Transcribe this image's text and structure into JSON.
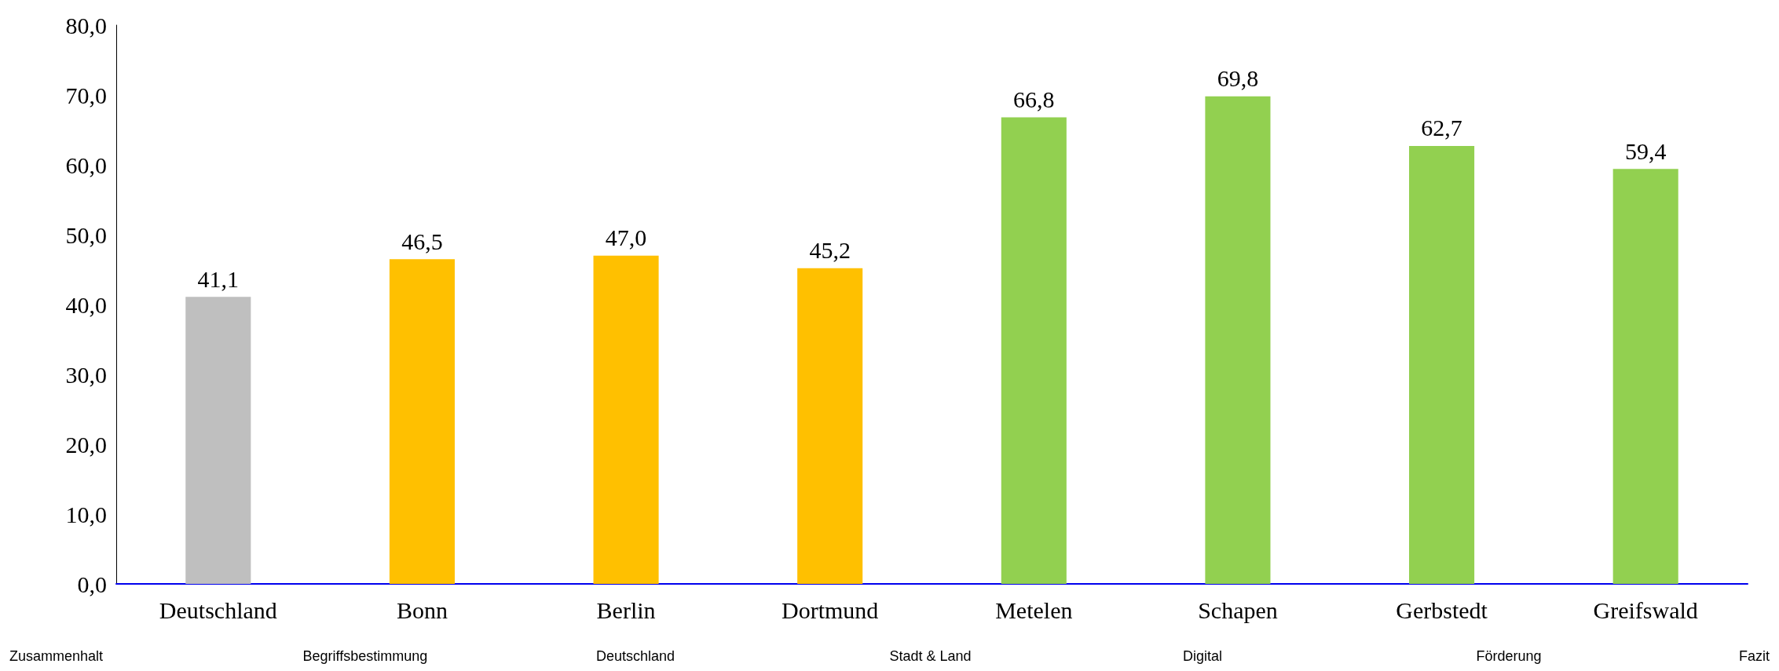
{
  "chart_data": {
    "type": "bar",
    "categories": [
      "Deutschland",
      "Bonn",
      "Berlin",
      "Dortmund",
      "Metelen",
      "Schapen",
      "Gerbstedt",
      "Greifswald"
    ],
    "values": [
      41.1,
      46.5,
      47.0,
      45.2,
      66.8,
      69.8,
      62.7,
      59.4
    ],
    "colors": [
      "#bfbfbf",
      "#ffc000",
      "#ffc000",
      "#ffc000",
      "#92d050",
      "#92d050",
      "#92d050",
      "#92d050"
    ],
    "ylim": [
      0,
      80
    ],
    "yticks": [
      {
        "value": 0,
        "label": "0,0"
      },
      {
        "value": 10,
        "label": "10,0"
      },
      {
        "value": 20,
        "label": "20,0"
      },
      {
        "value": 30,
        "label": "30,0"
      },
      {
        "value": 40,
        "label": "40,0"
      },
      {
        "value": 50,
        "label": "50,0"
      },
      {
        "value": 60,
        "label": "60,0"
      },
      {
        "value": 70,
        "label": "70,0"
      },
      {
        "value": 80,
        "label": "80,0"
      }
    ],
    "value_labels": [
      "41,1",
      "46,5",
      "47,0",
      "45,2",
      "66,8",
      "69,8",
      "62,7",
      "59,4"
    ],
    "grid": false,
    "annotations": [
      "Zusammenhalt",
      "Begriffsbestimmung",
      "Deutschland",
      "Stadt & Land",
      "Digital",
      "Förderung",
      "Fazit"
    ]
  }
}
